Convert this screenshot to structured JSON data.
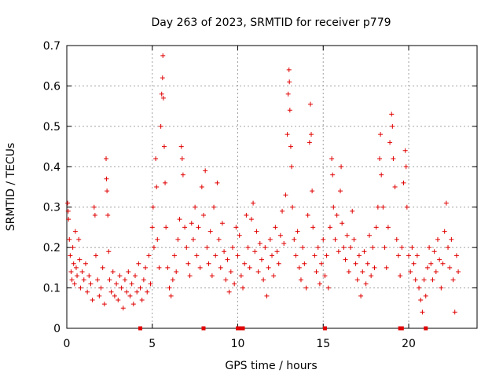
{
  "chart_data": {
    "type": "scatter",
    "title": "Day 263 of 2023, SRMTID for receiver p779",
    "xlabel": "GPS time / hours",
    "ylabel": "SRMTID / TECUs",
    "xlim": [
      0,
      24
    ],
    "ylim": [
      0,
      0.7
    ],
    "x_ticks": [
      0,
      5,
      10,
      15,
      20
    ],
    "x_tick_labels": [
      "0",
      "5",
      "10",
      "15",
      "20"
    ],
    "y_ticks": [
      0,
      0.1,
      0.2,
      0.3,
      0.4,
      0.5,
      0.6,
      0.7
    ],
    "y_tick_labels": [
      "0",
      "0.1",
      "0.2",
      "0.3",
      "0.4",
      "0.5",
      "0.6",
      "0.7"
    ],
    "grid": true,
    "marker": "plus",
    "color": "#e00000",
    "series": [
      {
        "name": "SRMTID",
        "points": [
          [
            0.05,
            0.31
          ],
          [
            0.08,
            0.29
          ],
          [
            0.1,
            0.27
          ],
          [
            0.15,
            0.22
          ],
          [
            0.2,
            0.18
          ],
          [
            0.25,
            0.14
          ],
          [
            0.3,
            0.12
          ],
          [
            0.35,
            0.2
          ],
          [
            0.4,
            0.16
          ],
          [
            0.45,
            0.11
          ],
          [
            0.5,
            0.24
          ],
          [
            0.55,
            0.15
          ],
          [
            0.6,
            0.13
          ],
          [
            0.7,
            0.22
          ],
          [
            0.75,
            0.17
          ],
          [
            0.8,
            0.1
          ],
          [
            0.9,
            0.14
          ],
          [
            1.0,
            0.12
          ],
          [
            1.1,
            0.16
          ],
          [
            1.2,
            0.09
          ],
          [
            1.3,
            0.13
          ],
          [
            1.4,
            0.11
          ],
          [
            1.5,
            0.07
          ],
          [
            1.6,
            0.3
          ],
          [
            1.65,
            0.28
          ],
          [
            1.7,
            0.18
          ],
          [
            1.8,
            0.12
          ],
          [
            1.9,
            0.08
          ],
          [
            2.0,
            0.1
          ],
          [
            2.1,
            0.15
          ],
          [
            2.2,
            0.06
          ],
          [
            2.3,
            0.42
          ],
          [
            2.32,
            0.37
          ],
          [
            2.35,
            0.34
          ],
          [
            2.4,
            0.28
          ],
          [
            2.45,
            0.19
          ],
          [
            2.5,
            0.12
          ],
          [
            2.6,
            0.09
          ],
          [
            2.7,
            0.14
          ],
          [
            2.8,
            0.08
          ],
          [
            2.9,
            0.11
          ],
          [
            3.0,
            0.07
          ],
          [
            3.1,
            0.13
          ],
          [
            3.2,
            0.1
          ],
          [
            3.3,
            0.05
          ],
          [
            3.4,
            0.12
          ],
          [
            3.5,
            0.09
          ],
          [
            3.6,
            0.14
          ],
          [
            3.7,
            0.08
          ],
          [
            3.8,
            0.11
          ],
          [
            3.9,
            0.06
          ],
          [
            4.0,
            0.13
          ],
          [
            4.1,
            0.09
          ],
          [
            4.2,
            0.16
          ],
          [
            4.3,
            0.1
          ],
          [
            4.4,
            0.07
          ],
          [
            4.5,
            0.12
          ],
          [
            4.6,
            0.15
          ],
          [
            4.7,
            0.09
          ],
          [
            4.8,
            0.18
          ],
          [
            4.9,
            0.11
          ],
          [
            5.0,
            0.25
          ],
          [
            5.05,
            0.3
          ],
          [
            5.1,
            0.2
          ],
          [
            5.2,
            0.42
          ],
          [
            5.25,
            0.35
          ],
          [
            5.3,
            0.22
          ],
          [
            5.4,
            0.15
          ],
          [
            5.5,
            0.5
          ],
          [
            5.55,
            0.58
          ],
          [
            5.6,
            0.62
          ],
          [
            5.62,
            0.675
          ],
          [
            5.65,
            0.57
          ],
          [
            5.7,
            0.45
          ],
          [
            5.75,
            0.36
          ],
          [
            5.8,
            0.25
          ],
          [
            5.9,
            0.15
          ],
          [
            6.0,
            0.1
          ],
          [
            6.1,
            0.08
          ],
          [
            6.2,
            0.12
          ],
          [
            6.3,
            0.18
          ],
          [
            6.4,
            0.14
          ],
          [
            6.5,
            0.22
          ],
          [
            6.6,
            0.27
          ],
          [
            6.7,
            0.45
          ],
          [
            6.75,
            0.42
          ],
          [
            6.8,
            0.38
          ],
          [
            6.9,
            0.25
          ],
          [
            7.0,
            0.2
          ],
          [
            7.1,
            0.16
          ],
          [
            7.2,
            0.13
          ],
          [
            7.3,
            0.26
          ],
          [
            7.4,
            0.22
          ],
          [
            7.5,
            0.3
          ],
          [
            7.6,
            0.18
          ],
          [
            7.7,
            0.25
          ],
          [
            7.8,
            0.15
          ],
          [
            7.9,
            0.35
          ],
          [
            8.0,
            0.28
          ],
          [
            8.1,
            0.39
          ],
          [
            8.2,
            0.2
          ],
          [
            8.3,
            0.16
          ],
          [
            8.4,
            0.24
          ],
          [
            8.5,
            0.13
          ],
          [
            8.6,
            0.3
          ],
          [
            8.7,
            0.18
          ],
          [
            8.8,
            0.36
          ],
          [
            8.9,
            0.22
          ],
          [
            9.0,
            0.15
          ],
          [
            9.1,
            0.26
          ],
          [
            9.2,
            0.19
          ],
          [
            9.3,
            0.12
          ],
          [
            9.4,
            0.17
          ],
          [
            9.5,
            0.09
          ],
          [
            9.6,
            0.14
          ],
          [
            9.7,
            0.2
          ],
          [
            9.8,
            0.11
          ],
          [
            9.9,
            0.25
          ],
          [
            10.0,
            0.18
          ],
          [
            10.1,
            0.23
          ],
          [
            10.2,
            0.13
          ],
          [
            10.3,
            0.1
          ],
          [
            10.4,
            0.16
          ],
          [
            10.5,
            0.28
          ],
          [
            10.6,
            0.2
          ],
          [
            10.7,
            0.15
          ],
          [
            10.8,
            0.27
          ],
          [
            10.9,
            0.31
          ],
          [
            11.0,
            0.19
          ],
          [
            11.1,
            0.24
          ],
          [
            11.2,
            0.14
          ],
          [
            11.3,
            0.21
          ],
          [
            11.4,
            0.17
          ],
          [
            11.5,
            0.12
          ],
          [
            11.6,
            0.2
          ],
          [
            11.7,
            0.08
          ],
          [
            11.8,
            0.15
          ],
          [
            11.9,
            0.22
          ],
          [
            12.0,
            0.18
          ],
          [
            12.1,
            0.13
          ],
          [
            12.2,
            0.25
          ],
          [
            12.3,
            0.19
          ],
          [
            12.4,
            0.16
          ],
          [
            12.5,
            0.23
          ],
          [
            12.6,
            0.29
          ],
          [
            12.7,
            0.21
          ],
          [
            12.8,
            0.33
          ],
          [
            12.9,
            0.48
          ],
          [
            12.95,
            0.58
          ],
          [
            13.0,
            0.64
          ],
          [
            13.02,
            0.61
          ],
          [
            13.05,
            0.54
          ],
          [
            13.1,
            0.45
          ],
          [
            13.15,
            0.4
          ],
          [
            13.2,
            0.3
          ],
          [
            13.3,
            0.22
          ],
          [
            13.4,
            0.18
          ],
          [
            13.5,
            0.24
          ],
          [
            13.6,
            0.15
          ],
          [
            13.7,
            0.12
          ],
          [
            13.8,
            0.2
          ],
          [
            13.9,
            0.16
          ],
          [
            14.0,
            0.1
          ],
          [
            14.1,
            0.28
          ],
          [
            14.2,
            0.46
          ],
          [
            14.25,
            0.555
          ],
          [
            14.3,
            0.48
          ],
          [
            14.35,
            0.34
          ],
          [
            14.4,
            0.25
          ],
          [
            14.5,
            0.18
          ],
          [
            14.6,
            0.14
          ],
          [
            14.7,
            0.2
          ],
          [
            14.8,
            0.11
          ],
          [
            14.9,
            0.16
          ],
          [
            15.0,
            0.22
          ],
          [
            15.1,
            0.13
          ],
          [
            15.2,
            0.18
          ],
          [
            15.3,
            0.1
          ],
          [
            15.4,
            0.25
          ],
          [
            15.5,
            0.42
          ],
          [
            15.55,
            0.38
          ],
          [
            15.6,
            0.3
          ],
          [
            15.7,
            0.22
          ],
          [
            15.8,
            0.28
          ],
          [
            15.9,
            0.19
          ],
          [
            16.0,
            0.34
          ],
          [
            16.05,
            0.4
          ],
          [
            16.1,
            0.26
          ],
          [
            16.2,
            0.2
          ],
          [
            16.3,
            0.17
          ],
          [
            16.4,
            0.23
          ],
          [
            16.5,
            0.14
          ],
          [
            16.6,
            0.2
          ],
          [
            16.7,
            0.29
          ],
          [
            16.8,
            0.22
          ],
          [
            16.9,
            0.16
          ],
          [
            17.0,
            0.12
          ],
          [
            17.1,
            0.18
          ],
          [
            17.2,
            0.08
          ],
          [
            17.3,
            0.14
          ],
          [
            17.4,
            0.19
          ],
          [
            17.5,
            0.11
          ],
          [
            17.6,
            0.16
          ],
          [
            17.7,
            0.23
          ],
          [
            17.8,
            0.13
          ],
          [
            17.9,
            0.2
          ],
          [
            18.0,
            0.15
          ],
          [
            18.1,
            0.25
          ],
          [
            18.2,
            0.3
          ],
          [
            18.3,
            0.42
          ],
          [
            18.35,
            0.48
          ],
          [
            18.4,
            0.38
          ],
          [
            18.5,
            0.3
          ],
          [
            18.6,
            0.2
          ],
          [
            18.7,
            0.15
          ],
          [
            18.8,
            0.25
          ],
          [
            18.9,
            0.46
          ],
          [
            19.0,
            0.53
          ],
          [
            19.05,
            0.5
          ],
          [
            19.1,
            0.42
          ],
          [
            19.2,
            0.35
          ],
          [
            19.3,
            0.22
          ],
          [
            19.4,
            0.18
          ],
          [
            19.5,
            0.13
          ],
          [
            19.6,
            0.2
          ],
          [
            19.7,
            0.36
          ],
          [
            19.8,
            0.44
          ],
          [
            19.85,
            0.4
          ],
          [
            19.9,
            0.3
          ],
          [
            20.0,
            0.18
          ],
          [
            20.1,
            0.14
          ],
          [
            20.2,
            0.2
          ],
          [
            20.3,
            0.16
          ],
          [
            20.4,
            0.12
          ],
          [
            20.5,
            0.18
          ],
          [
            20.6,
            0.1
          ],
          [
            20.7,
            0.07
          ],
          [
            20.8,
            0.04
          ],
          [
            20.9,
            0.12
          ],
          [
            21.0,
            0.08
          ],
          [
            21.1,
            0.15
          ],
          [
            21.2,
            0.2
          ],
          [
            21.3,
            0.16
          ],
          [
            21.4,
            0.12
          ],
          [
            21.5,
            0.19
          ],
          [
            21.6,
            0.14
          ],
          [
            21.7,
            0.22
          ],
          [
            21.8,
            0.17
          ],
          [
            21.9,
            0.1
          ],
          [
            22.0,
            0.16
          ],
          [
            22.1,
            0.24
          ],
          [
            22.2,
            0.31
          ],
          [
            22.3,
            0.2
          ],
          [
            22.4,
            0.15
          ],
          [
            22.5,
            0.22
          ],
          [
            22.6,
            0.12
          ],
          [
            22.7,
            0.04
          ],
          [
            22.8,
            0.18
          ],
          [
            22.9,
            0.14
          ]
        ]
      }
    ],
    "zero_markers": [
      4.3,
      8.0,
      10.0,
      10.15,
      10.3,
      15.1,
      19.5,
      19.6,
      21.0
    ]
  }
}
